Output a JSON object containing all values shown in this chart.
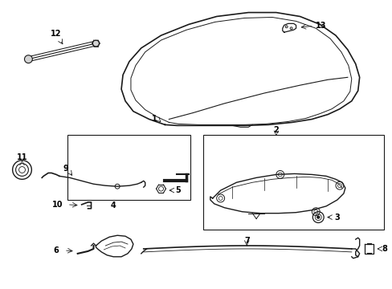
{
  "background_color": "#ffffff",
  "line_color": "#1a1a1a",
  "label_color": "#000000",
  "title": ""
}
